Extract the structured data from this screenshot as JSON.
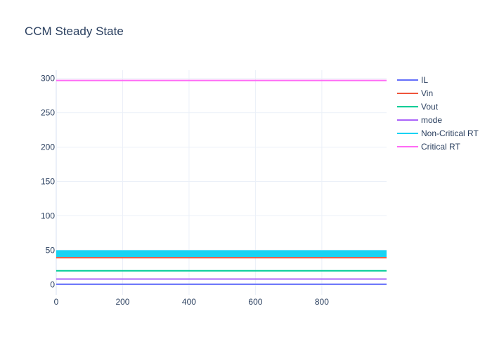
{
  "chart_data": {
    "type": "line",
    "title": "CCM Steady State",
    "xlabel": "",
    "ylabel": "",
    "xlim": [
      0,
      995
    ],
    "ylim": [
      -15,
      312
    ],
    "x_ticks": [
      0,
      200,
      400,
      600,
      800
    ],
    "y_ticks": [
      0,
      50,
      100,
      150,
      200,
      250,
      300
    ],
    "grid": true,
    "legend_position": "right",
    "series": [
      {
        "name": "IL",
        "color": "#636efa",
        "x": [
          0,
          995
        ],
        "y": [
          0.5,
          0.5
        ],
        "width": 2
      },
      {
        "name": "Vin",
        "color": "#ef553b",
        "x": [
          0,
          995
        ],
        "y": [
          39,
          39
        ],
        "width": 2
      },
      {
        "name": "Vout",
        "color": "#00cc96",
        "x": [
          0,
          995
        ],
        "y": [
          20,
          20
        ],
        "width": 2
      },
      {
        "name": "mode",
        "color": "#ab63fa",
        "x": [
          0,
          995
        ],
        "y": [
          8,
          8
        ],
        "width": 2
      },
      {
        "name": "Non-Critical RT",
        "color": "#19d3f3",
        "x": [
          0,
          995
        ],
        "y": [
          45,
          45
        ],
        "band": [
          40,
          50
        ]
      },
      {
        "name": "Critical RT",
        "color": "#ff6af5",
        "x": [
          0,
          995
        ],
        "y": [
          297,
          297
        ],
        "width": 2
      }
    ]
  }
}
